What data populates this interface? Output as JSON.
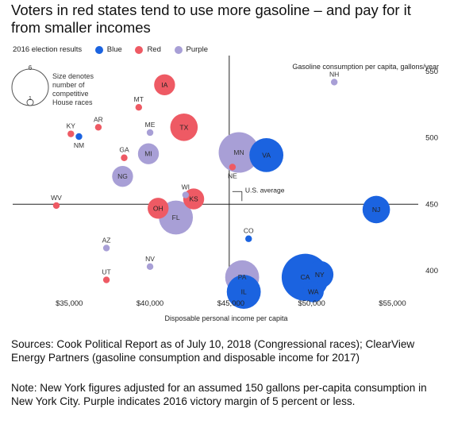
{
  "title": "Voters in red states tend to use more gasoline – and pay for it from smaller incomes",
  "legend": {
    "label": "2016 election results",
    "items": [
      {
        "name": "Blue",
        "color": "#1b63e0"
      },
      {
        "name": "Red",
        "color": "#ee5a64"
      },
      {
        "name": "Purple",
        "color": "#a89fd6"
      }
    ],
    "size_key": {
      "large_value": "6",
      "small_value": "1",
      "text": [
        "Size denotes",
        "number of",
        "competitive",
        "House races"
      ]
    }
  },
  "colors": {
    "blue": "#1b63e0",
    "red": "#ee5a64",
    "purple": "#a89fd6",
    "axis": "#222222"
  },
  "chart_data": {
    "type": "scatter",
    "ylabel": "Gasoline consumption per capita, gallons/year",
    "xlabel": "Disposable personal income per capita",
    "xlim": [
      31500,
      56500
    ],
    "ylim": [
      373,
      562
    ],
    "x_ticks": [
      35000,
      40000,
      45000,
      50000,
      55000
    ],
    "x_tick_labels": [
      "$35,000",
      "$40,000",
      "$45,000",
      "$50,000",
      "$55,000"
    ],
    "y_ticks": [
      400,
      450,
      500,
      550
    ],
    "y_tick_labels": [
      "400",
      "450",
      "500",
      "550"
    ],
    "reference_lines": {
      "us_average_x": 44900,
      "us_average_y": 450,
      "label": "U.S. average"
    },
    "points": [
      {
        "state": "NH",
        "x": 51400,
        "y": 542,
        "color": "purple",
        "races": 0
      },
      {
        "state": "IA",
        "x": 40900,
        "y": 540,
        "color": "red",
        "races": 2
      },
      {
        "state": "MT",
        "x": 39300,
        "y": 523,
        "color": "red",
        "races": 0
      },
      {
        "state": "AR",
        "x": 36800,
        "y": 508,
        "color": "red",
        "races": 0
      },
      {
        "state": "KY",
        "x": 35100,
        "y": 503,
        "color": "red",
        "races": 0
      },
      {
        "state": "NM",
        "x": 35600,
        "y": 501,
        "color": "blue",
        "races": 0
      },
      {
        "state": "ME",
        "x": 40000,
        "y": 504,
        "color": "purple",
        "races": 0
      },
      {
        "state": "TX",
        "x": 42100,
        "y": 508,
        "color": "red",
        "races": 3
      },
      {
        "state": "GA",
        "x": 38400,
        "y": 485,
        "color": "red",
        "races": 0
      },
      {
        "state": "MI",
        "x": 39900,
        "y": 488,
        "color": "purple",
        "races": 2
      },
      {
        "state": "MN",
        "x": 45500,
        "y": 489,
        "color": "purple",
        "races": 5
      },
      {
        "state": "VA",
        "x": 47200,
        "y": 487,
        "color": "blue",
        "races": 4
      },
      {
        "state": "NE",
        "x": 45100,
        "y": 478,
        "color": "red",
        "races": 0
      },
      {
        "state": "NG",
        "x": 38300,
        "y": 471,
        "color": "purple",
        "races": 2
      },
      {
        "state": "WI",
        "x": 42200,
        "y": 457,
        "color": "purple",
        "races": 0
      },
      {
        "state": "KS",
        "x": 42700,
        "y": 454,
        "color": "red",
        "races": 2
      },
      {
        "state": "WV",
        "x": 34200,
        "y": 449,
        "color": "red",
        "races": 0
      },
      {
        "state": "OH",
        "x": 40500,
        "y": 447,
        "color": "red",
        "races": 2
      },
      {
        "state": "FL",
        "x": 41600,
        "y": 440,
        "color": "purple",
        "races": 4
      },
      {
        "state": "NJ",
        "x": 54000,
        "y": 446,
        "color": "blue",
        "races": 3
      },
      {
        "state": "CO",
        "x": 46100,
        "y": 424,
        "color": "blue",
        "races": 0
      },
      {
        "state": "AZ",
        "x": 37300,
        "y": 417,
        "color": "purple",
        "races": 0
      },
      {
        "state": "NV",
        "x": 40000,
        "y": 403,
        "color": "purple",
        "races": 0
      },
      {
        "state": "UT",
        "x": 37300,
        "y": 393,
        "color": "red",
        "races": 0
      },
      {
        "state": "PA",
        "x": 45700,
        "y": 395,
        "color": "purple",
        "races": 4
      },
      {
        "state": "IL",
        "x": 45800,
        "y": 384,
        "color": "blue",
        "races": 4
      },
      {
        "state": "CA",
        "x": 49600,
        "y": 395,
        "color": "blue",
        "races": 6
      },
      {
        "state": "NY",
        "x": 50500,
        "y": 397,
        "color": "blue",
        "races": 3
      },
      {
        "state": "WA",
        "x": 50100,
        "y": 384,
        "color": "blue",
        "races": 2
      }
    ]
  },
  "sources": "Sources: Cook Political Report as of July 10, 2018 (Congressional races); ClearView Energy Partners (gasoline consumption and disposable income for 2017)",
  "note": "Note: New York figures adjusted for an assumed 150 gallons per-capita consumption in New York City. Purple indicates 2016 victory margin of 5 percent or less."
}
